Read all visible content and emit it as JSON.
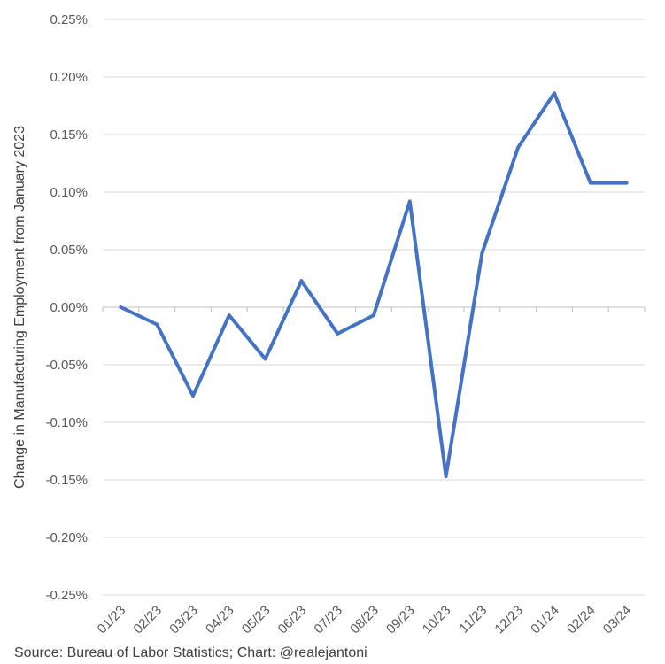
{
  "chart_data": {
    "type": "line",
    "ylabel": "Change in Manufacturing Employment from January 2023",
    "ylim": [
      -0.25,
      0.25
    ],
    "yticks": [
      "0.25%",
      "0.20%",
      "0.15%",
      "0.10%",
      "0.05%",
      "0.00%",
      "-0.05%",
      "-0.10%",
      "-0.15%",
      "-0.20%",
      "-0.25%"
    ],
    "ytick_values": [
      0.25,
      0.2,
      0.15,
      0.1,
      0.05,
      0.0,
      -0.05,
      -0.1,
      -0.15,
      -0.2,
      -0.25
    ],
    "categories": [
      "01/23",
      "02/23",
      "03/23",
      "04/23",
      "05/23",
      "06/23",
      "07/23",
      "08/23",
      "09/23",
      "10/23",
      "11/23",
      "12/23",
      "01/24",
      "02/24",
      "03/24"
    ],
    "series": [
      {
        "values": [
          0.0,
          -0.015,
          -0.077,
          -0.007,
          -0.045,
          0.023,
          -0.023,
          -0.007,
          0.092,
          -0.147,
          0.047,
          0.139,
          0.186,
          0.108,
          0.108
        ]
      }
    ],
    "grid": true,
    "line_color": "#4472C4",
    "grid_color": "#d9d9d9"
  },
  "footer": {
    "source": "Source: Bureau of Labor Statistics; Chart: @realejantoni"
  }
}
